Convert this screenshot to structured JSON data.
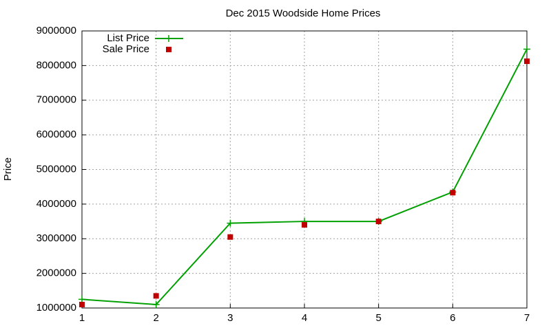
{
  "chart_data": {
    "type": "line",
    "title": "Dec 2015 Woodside Home Prices",
    "y_label": "Price",
    "x": [
      1,
      2,
      3,
      4,
      5,
      6,
      7
    ],
    "series": [
      {
        "name": "List Price",
        "color": "#00a000",
        "style": "linespoints",
        "values": [
          1250000,
          1100000,
          3450000,
          3500000,
          3500000,
          4350000,
          8475000
        ]
      },
      {
        "name": "Sale Price",
        "color": "#c00000",
        "style": "points",
        "values": [
          1100000,
          1350000,
          3050000,
          3400000,
          3500000,
          4330000,
          8125000
        ]
      }
    ],
    "xlim": [
      1,
      7
    ],
    "xticks": [
      1,
      2,
      3,
      4,
      5,
      6,
      7
    ],
    "ylim": [
      1000000,
      9000000
    ],
    "yticks": [
      1000000,
      2000000,
      3000000,
      4000000,
      5000000,
      6000000,
      7000000,
      8000000,
      9000000
    ],
    "grid": true,
    "legend": "top-left"
  }
}
